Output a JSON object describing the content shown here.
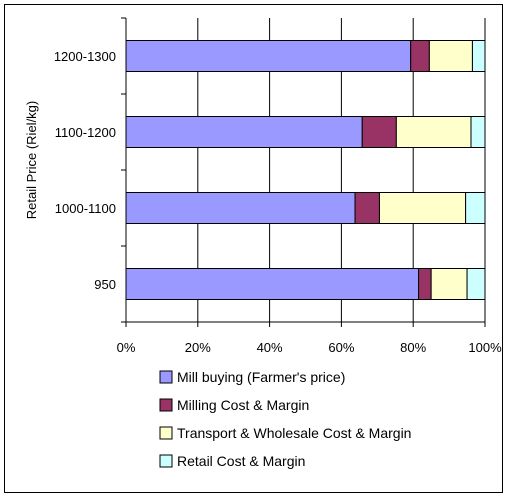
{
  "chart_data": {
    "type": "bar",
    "orientation": "horizontal",
    "stacked": "percent",
    "ylabel": "Retail Price (Riel/kg)",
    "xlabel": "",
    "xlim": [
      0,
      100
    ],
    "xticks": [
      "0%",
      "20%",
      "40%",
      "60%",
      "80%",
      "100%"
    ],
    "categories": [
      "950",
      "1000-1100",
      "1100-1200",
      "1200-1300"
    ],
    "grid": true,
    "legend_position": "bottom",
    "series": [
      {
        "name": "Mill buying (Farmer's price)",
        "color": "#9999ff",
        "values": [
          81.5,
          63.8,
          65.8,
          79.3
        ]
      },
      {
        "name": "Milling Cost & Margin",
        "color": "#993366",
        "values": [
          3.5,
          6.8,
          9.5,
          5.2
        ]
      },
      {
        "name": "Transport & Wholesale Cost & Margin",
        "color": "#ffffcc",
        "values": [
          10.0,
          24.0,
          20.8,
          12.0
        ]
      },
      {
        "name": "Retail Cost & Margin",
        "color": "#ccffff",
        "values": [
          5.0,
          5.4,
          3.9,
          3.5
        ]
      }
    ]
  }
}
